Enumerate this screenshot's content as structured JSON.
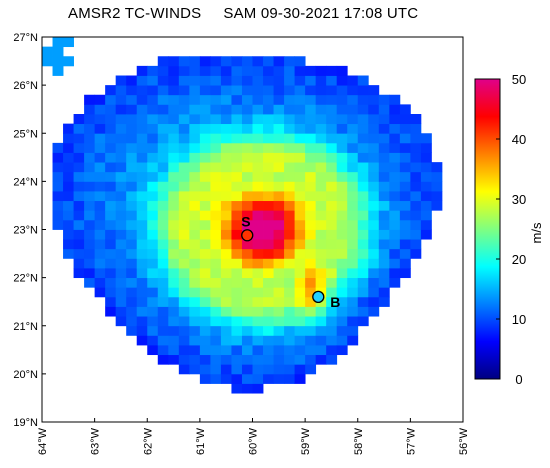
{
  "header": {
    "product": "AMSR2 TC-WINDS",
    "storm_and_time": "SAM 09-30-2021 17:08 UTC"
  },
  "map": {
    "lat_labels": [
      "27°N",
      "26°N",
      "25°N",
      "24°N",
      "23°N",
      "22°N",
      "21°N",
      "20°N",
      "19°N"
    ],
    "lat_values": [
      27,
      26,
      25,
      24,
      23,
      22,
      21,
      20,
      19
    ],
    "lon_labels": [
      "64°W",
      "63°W",
      "62°W",
      "61°W",
      "60°W",
      "59°W",
      "58°W",
      "57°W",
      "56°W"
    ],
    "lon_values": [
      -64,
      -63,
      -62,
      -61,
      -60,
      -59,
      -58,
      -57,
      -56
    ],
    "extent": {
      "lon_min": -64,
      "lon_max": -56,
      "lat_min": 19,
      "lat_max": 27
    },
    "storm_center": {
      "lon": -59.8,
      "lat": 23.0
    },
    "markers": [
      {
        "id": "S",
        "label": "S",
        "lon": -60.1,
        "lat": 22.88,
        "color": "#ff3300"
      },
      {
        "id": "B",
        "label": "B",
        "lon": -58.75,
        "lat": 21.6,
        "color": "#20d0ff"
      }
    ]
  },
  "colorbar": {
    "title": "m/s",
    "min": 0,
    "max": 50,
    "tick_labels": [
      "50",
      "40",
      "30",
      "20",
      "10",
      "0"
    ],
    "tick_values": [
      50,
      40,
      30,
      20,
      10,
      0
    ],
    "color_stops": [
      "#000080",
      "#0000ff",
      "#0080ff",
      "#00ffff",
      "#80ff80",
      "#ffff00",
      "#ff8000",
      "#ff0000",
      "#e0008a"
    ]
  }
}
